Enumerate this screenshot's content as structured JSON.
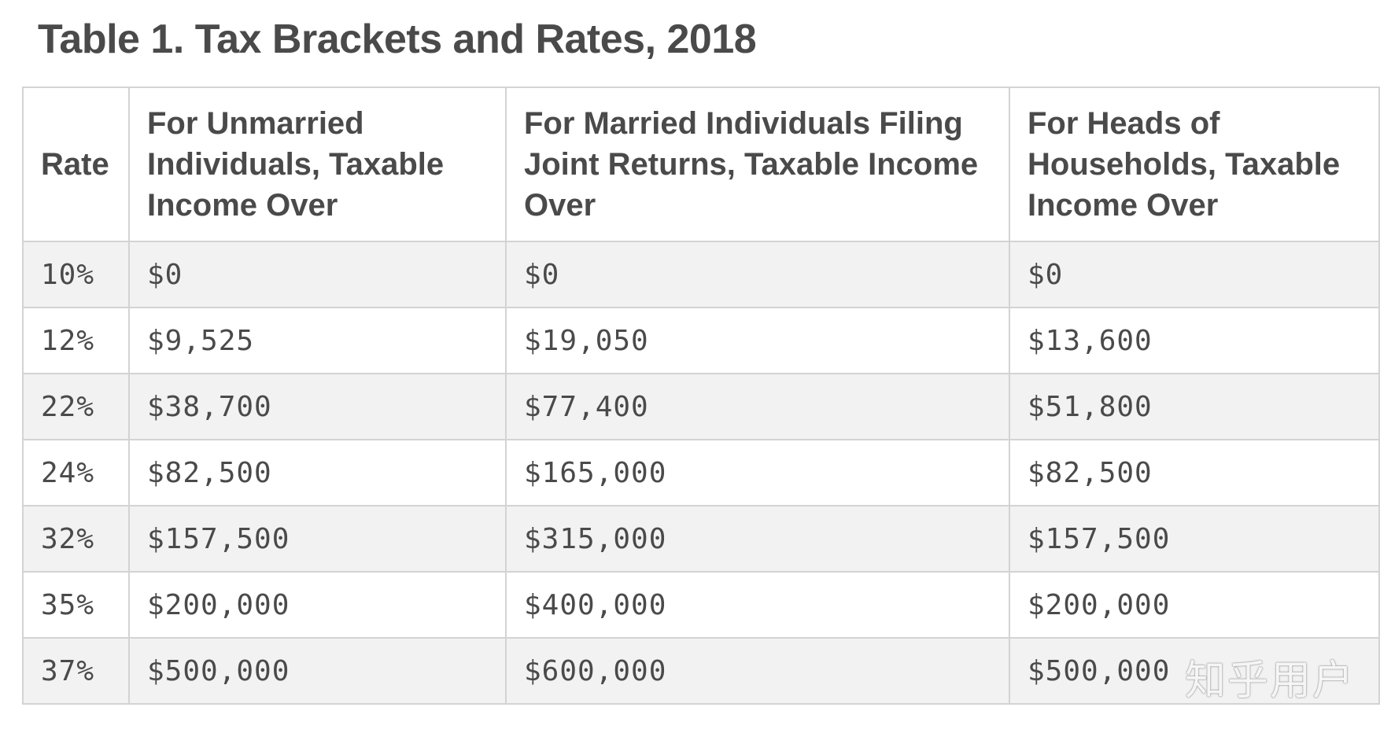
{
  "title": "Table 1. Tax Brackets and Rates, 2018",
  "table": {
    "headers": [
      "Rate",
      "For Unmarried Individuals, Taxable Income Over",
      "For Married Individuals Filing Joint Returns, Taxable Income Over",
      "For Heads of Households, Taxable Income Over"
    ],
    "rows": [
      [
        "10%",
        "$0",
        "$0",
        "$0"
      ],
      [
        "12%",
        "$9,525",
        "$19,050",
        "$13,600"
      ],
      [
        "22%",
        "$38,700",
        "$77,400",
        "$51,800"
      ],
      [
        "24%",
        "$82,500",
        "$165,000",
        "$82,500"
      ],
      [
        "32%",
        "$157,500",
        "$315,000",
        "$157,500"
      ],
      [
        "35%",
        "$200,000",
        "$400,000",
        "$200,000"
      ],
      [
        "37%",
        "$500,000",
        "$600,000",
        "$500,000"
      ]
    ]
  },
  "watermark": "知乎用户",
  "colors": {
    "text": "#4a4a4a",
    "border": "#d3d3d3",
    "stripe": "#f2f2f2",
    "background": "#ffffff"
  }
}
